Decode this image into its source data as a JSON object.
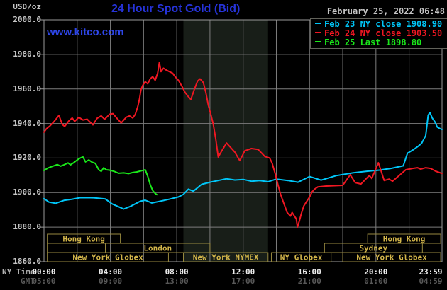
{
  "header": {
    "units_label": "USD/oz",
    "title": "24 Hour Spot Gold (Bid)",
    "title_color": "#2633d9",
    "datetime": "February 25, 2022 06:48",
    "datetime_color": "#c6c6c6",
    "watermark": "www.kitco.com",
    "watermark_color": "#2e46e8"
  },
  "legend": {
    "items": [
      {
        "label": "Feb 23 NY close 1908.90",
        "color": "#00c6f8"
      },
      {
        "label": "Feb 24 NY close 1903.50",
        "color": "#f01722"
      },
      {
        "label": "Feb 25 Last 1898.80",
        "color": "#1ae81a"
      }
    ]
  },
  "axes": {
    "x_ny_label": "NY Time",
    "x_gmt_label": "GMT",
    "y_ticks": [
      "2000.0",
      "1980.0",
      "1960.0",
      "1940.0",
      "1920.0",
      "1900.0",
      "1880.0",
      "1860.0"
    ],
    "x_ny_ticks": [
      {
        "t": 0,
        "label": "00:00"
      },
      {
        "t": 4,
        "label": "04:00"
      },
      {
        "t": 8,
        "label": "08:00"
      },
      {
        "t": 12,
        "label": "12:00"
      },
      {
        "t": 16,
        "label": "16:00"
      },
      {
        "t": 20,
        "label": "20:00"
      },
      {
        "t": 23.983,
        "label": "23:59"
      }
    ],
    "x_gmt_ticks": [
      {
        "t": 0,
        "label": "05:00"
      },
      {
        "t": 4,
        "label": "09:00"
      },
      {
        "t": 8,
        "label": "13:00"
      },
      {
        "t": 12,
        "label": "17:00"
      },
      {
        "t": 16,
        "label": "21:00"
      },
      {
        "t": 20,
        "label": "01:00"
      },
      {
        "t": 23.983,
        "label": "04:59"
      }
    ]
  },
  "sessions": {
    "text_color": "#d2b54a",
    "border_color": "#97893f",
    "rows": [
      {
        "boxes": [
          {
            "label": "Hong Kong",
            "start": 0.2,
            "end": 4.6
          },
          {
            "label": "Hong Kong",
            "start": 19.5,
            "end": 23.9
          }
        ]
      },
      {
        "boxes": [
          {
            "label": "",
            "start": 0.2,
            "end": 3.7
          },
          {
            "label": "London",
            "start": 3.7,
            "end": 10.0
          },
          {
            "label": "Sydney",
            "start": 16.9,
            "end": 22.8
          }
        ]
      },
      {
        "boxes": [
          {
            "label": "New York Globex",
            "start": 0.2,
            "end": 7.5
          },
          {
            "label": "New York NYMEX",
            "start": 8.4,
            "end": 13.5
          },
          {
            "label": "NY Globex",
            "start": 13.7,
            "end": 17.3
          },
          {
            "label": "New York Globex",
            "start": 18.0,
            "end": 23.9
          }
        ]
      }
    ]
  },
  "chart_data": {
    "type": "line",
    "title": "24 Hour Spot Gold (Bid)",
    "xlabel": "NY Time (hours, 00:00-23:59)",
    "ylabel": "USD/oz",
    "ylim": [
      1860,
      2000
    ],
    "xlim": [
      0,
      23.983
    ],
    "y_gridline_step": 20,
    "x_gridline_step_hours": 2,
    "grid": true,
    "background": "#000000",
    "gridline_color": "#7d7d7d",
    "nymex_highlight_band_hours": [
      8.4,
      13.5
    ],
    "band_color": "#181e18",
    "series": [
      {
        "name": "Feb 23",
        "close_label": "NY close 1908.90",
        "color": "#00c6f8",
        "points": [
          [
            0,
            1896.5
          ],
          [
            0.3,
            1894.5
          ],
          [
            0.7,
            1893.8
          ],
          [
            1.2,
            1895.5
          ],
          [
            1.7,
            1896.2
          ],
          [
            2.2,
            1897.1
          ],
          [
            3,
            1897
          ],
          [
            3.7,
            1896.3
          ],
          [
            4.1,
            1893.5
          ],
          [
            4.5,
            1891.8
          ],
          [
            4.8,
            1890.5
          ],
          [
            5.2,
            1892
          ],
          [
            5.8,
            1895
          ],
          [
            6.1,
            1895.6
          ],
          [
            6.5,
            1894
          ],
          [
            7,
            1895
          ],
          [
            7.6,
            1896.3
          ],
          [
            8.1,
            1897.5
          ],
          [
            8.4,
            1899
          ],
          [
            8.7,
            1902
          ],
          [
            9,
            1900.8
          ],
          [
            9.5,
            1904.8
          ],
          [
            10,
            1906
          ],
          [
            10.5,
            1907
          ],
          [
            11,
            1908
          ],
          [
            11.5,
            1907.3
          ],
          [
            12,
            1907.6
          ],
          [
            12.5,
            1906.6
          ],
          [
            13,
            1907
          ],
          [
            13.5,
            1906.3
          ],
          [
            14,
            1907.8
          ],
          [
            14.7,
            1907
          ],
          [
            15.3,
            1906
          ],
          [
            16,
            1909.3
          ],
          [
            16.7,
            1907.2
          ],
          [
            17.6,
            1909.8
          ],
          [
            18.6,
            1911.4
          ],
          [
            19.5,
            1912.4
          ],
          [
            20.2,
            1913
          ],
          [
            20.9,
            1914
          ],
          [
            21.65,
            1915.5
          ],
          [
            21.9,
            1922.8
          ],
          [
            22.2,
            1924.5
          ],
          [
            22.5,
            1926.5
          ],
          [
            22.75,
            1928.5
          ],
          [
            23,
            1933
          ],
          [
            23.15,
            1944.8
          ],
          [
            23.25,
            1946.3
          ],
          [
            23.4,
            1943
          ],
          [
            23.55,
            1941
          ],
          [
            23.7,
            1937.8
          ],
          [
            23.98,
            1936.5
          ]
        ]
      },
      {
        "name": "Feb 24",
        "close_label": "NY close 1903.50",
        "color": "#f01722",
        "points": [
          [
            0,
            1935
          ],
          [
            0.15,
            1937
          ],
          [
            0.35,
            1938.5
          ],
          [
            0.6,
            1941
          ],
          [
            0.9,
            1944.7
          ],
          [
            1.1,
            1939.5
          ],
          [
            1.25,
            1938.3
          ],
          [
            1.5,
            1941.5
          ],
          [
            1.7,
            1943.2
          ],
          [
            1.85,
            1941.2
          ],
          [
            2.1,
            1943.6
          ],
          [
            2.35,
            1942
          ],
          [
            2.6,
            1942.5
          ],
          [
            2.95,
            1939.2
          ],
          [
            3.2,
            1943
          ],
          [
            3.45,
            1944.4
          ],
          [
            3.65,
            1942.4
          ],
          [
            3.95,
            1945.3
          ],
          [
            4.15,
            1945.7
          ],
          [
            4.45,
            1942.4
          ],
          [
            4.65,
            1940.3
          ],
          [
            4.95,
            1943.6
          ],
          [
            5.15,
            1944.4
          ],
          [
            5.35,
            1943.2
          ],
          [
            5.5,
            1945.3
          ],
          [
            5.65,
            1949.8
          ],
          [
            5.75,
            1954
          ],
          [
            5.85,
            1959.7
          ],
          [
            5.95,
            1962.1
          ],
          [
            6.1,
            1964.2
          ],
          [
            6.25,
            1963
          ],
          [
            6.4,
            1965.8
          ],
          [
            6.55,
            1967.1
          ],
          [
            6.7,
            1965
          ],
          [
            6.85,
            1969.1
          ],
          [
            6.95,
            1975.3
          ],
          [
            7.05,
            1970
          ],
          [
            7.2,
            1972
          ],
          [
            7.35,
            1971
          ],
          [
            7.5,
            1970.3
          ],
          [
            7.75,
            1969.1
          ],
          [
            7.9,
            1967.1
          ],
          [
            8.1,
            1965
          ],
          [
            8.3,
            1961.7
          ],
          [
            8.5,
            1958
          ],
          [
            8.7,
            1955.5
          ],
          [
            8.85,
            1953.9
          ],
          [
            9.05,
            1959.5
          ],
          [
            9.25,
            1964.5
          ],
          [
            9.4,
            1965.8
          ],
          [
            9.6,
            1963.7
          ],
          [
            9.75,
            1958
          ],
          [
            9.9,
            1950.6
          ],
          [
            10.05,
            1945.3
          ],
          [
            10.2,
            1939.5
          ],
          [
            10.35,
            1931
          ],
          [
            10.5,
            1920.6
          ],
          [
            10.7,
            1924
          ],
          [
            11,
            1928.7
          ],
          [
            11.5,
            1923.4
          ],
          [
            11.8,
            1918.5
          ],
          [
            12.1,
            1924.2
          ],
          [
            12.5,
            1925.5
          ],
          [
            12.9,
            1925
          ],
          [
            13.3,
            1921
          ],
          [
            13.6,
            1920
          ],
          [
            13.75,
            1917
          ],
          [
            13.95,
            1910.3
          ],
          [
            14.1,
            1904.5
          ],
          [
            14.25,
            1899.2
          ],
          [
            14.45,
            1893.8
          ],
          [
            14.65,
            1888.5
          ],
          [
            14.85,
            1886.4
          ],
          [
            14.95,
            1888.5
          ],
          [
            15.05,
            1887
          ],
          [
            15.2,
            1884.8
          ],
          [
            15.27,
            1880
          ],
          [
            15.4,
            1884
          ],
          [
            15.5,
            1887.7
          ],
          [
            15.65,
            1892.2
          ],
          [
            15.8,
            1894.5
          ],
          [
            16,
            1897.5
          ],
          [
            16.15,
            1900.4
          ],
          [
            16.3,
            1902
          ],
          [
            16.5,
            1903.3
          ],
          [
            17,
            1903.8
          ],
          [
            17.5,
            1904
          ],
          [
            18,
            1904.2
          ],
          [
            18.45,
            1910.3
          ],
          [
            18.75,
            1905.8
          ],
          [
            19.1,
            1905
          ],
          [
            19.6,
            1909.9
          ],
          [
            19.75,
            1908.2
          ],
          [
            20.15,
            1917.3
          ],
          [
            20.5,
            1907
          ],
          [
            20.8,
            1907.8
          ],
          [
            21,
            1906.6
          ],
          [
            21.4,
            1909.9
          ],
          [
            21.8,
            1913.2
          ],
          [
            22.2,
            1914
          ],
          [
            22.5,
            1914.4
          ],
          [
            22.7,
            1913.6
          ],
          [
            23,
            1914.4
          ],
          [
            23.3,
            1914
          ],
          [
            23.6,
            1912.4
          ],
          [
            23.98,
            1911.1
          ]
        ]
      },
      {
        "name": "Feb 25",
        "close_label": "Last 1898.80",
        "color": "#1ae81a",
        "points": [
          [
            0,
            1912.8
          ],
          [
            0.25,
            1914.3
          ],
          [
            0.5,
            1915.2
          ],
          [
            0.8,
            1916.2
          ],
          [
            1,
            1915.3
          ],
          [
            1.2,
            1916.1
          ],
          [
            1.45,
            1917.2
          ],
          [
            1.6,
            1916.1
          ],
          [
            1.8,
            1917.4
          ],
          [
            2,
            1918.9
          ],
          [
            2.2,
            1920.1
          ],
          [
            2.35,
            1920.6
          ],
          [
            2.5,
            1917.8
          ],
          [
            2.7,
            1918.9
          ],
          [
            2.9,
            1917.6
          ],
          [
            3.1,
            1916.9
          ],
          [
            3.3,
            1913.2
          ],
          [
            3.45,
            1912.3
          ],
          [
            3.6,
            1914.4
          ],
          [
            3.75,
            1913.2
          ],
          [
            3.95,
            1913
          ],
          [
            4.2,
            1912.4
          ],
          [
            4.5,
            1911.2
          ],
          [
            4.8,
            1911.4
          ],
          [
            5.1,
            1911
          ],
          [
            5.35,
            1911.6
          ],
          [
            5.6,
            1912
          ],
          [
            5.85,
            1912.6
          ],
          [
            6.1,
            1913.2
          ],
          [
            6.25,
            1909.5
          ],
          [
            6.4,
            1904.6
          ],
          [
            6.55,
            1901.2
          ],
          [
            6.7,
            1899.5
          ],
          [
            6.8,
            1898.8
          ]
        ]
      }
    ]
  }
}
